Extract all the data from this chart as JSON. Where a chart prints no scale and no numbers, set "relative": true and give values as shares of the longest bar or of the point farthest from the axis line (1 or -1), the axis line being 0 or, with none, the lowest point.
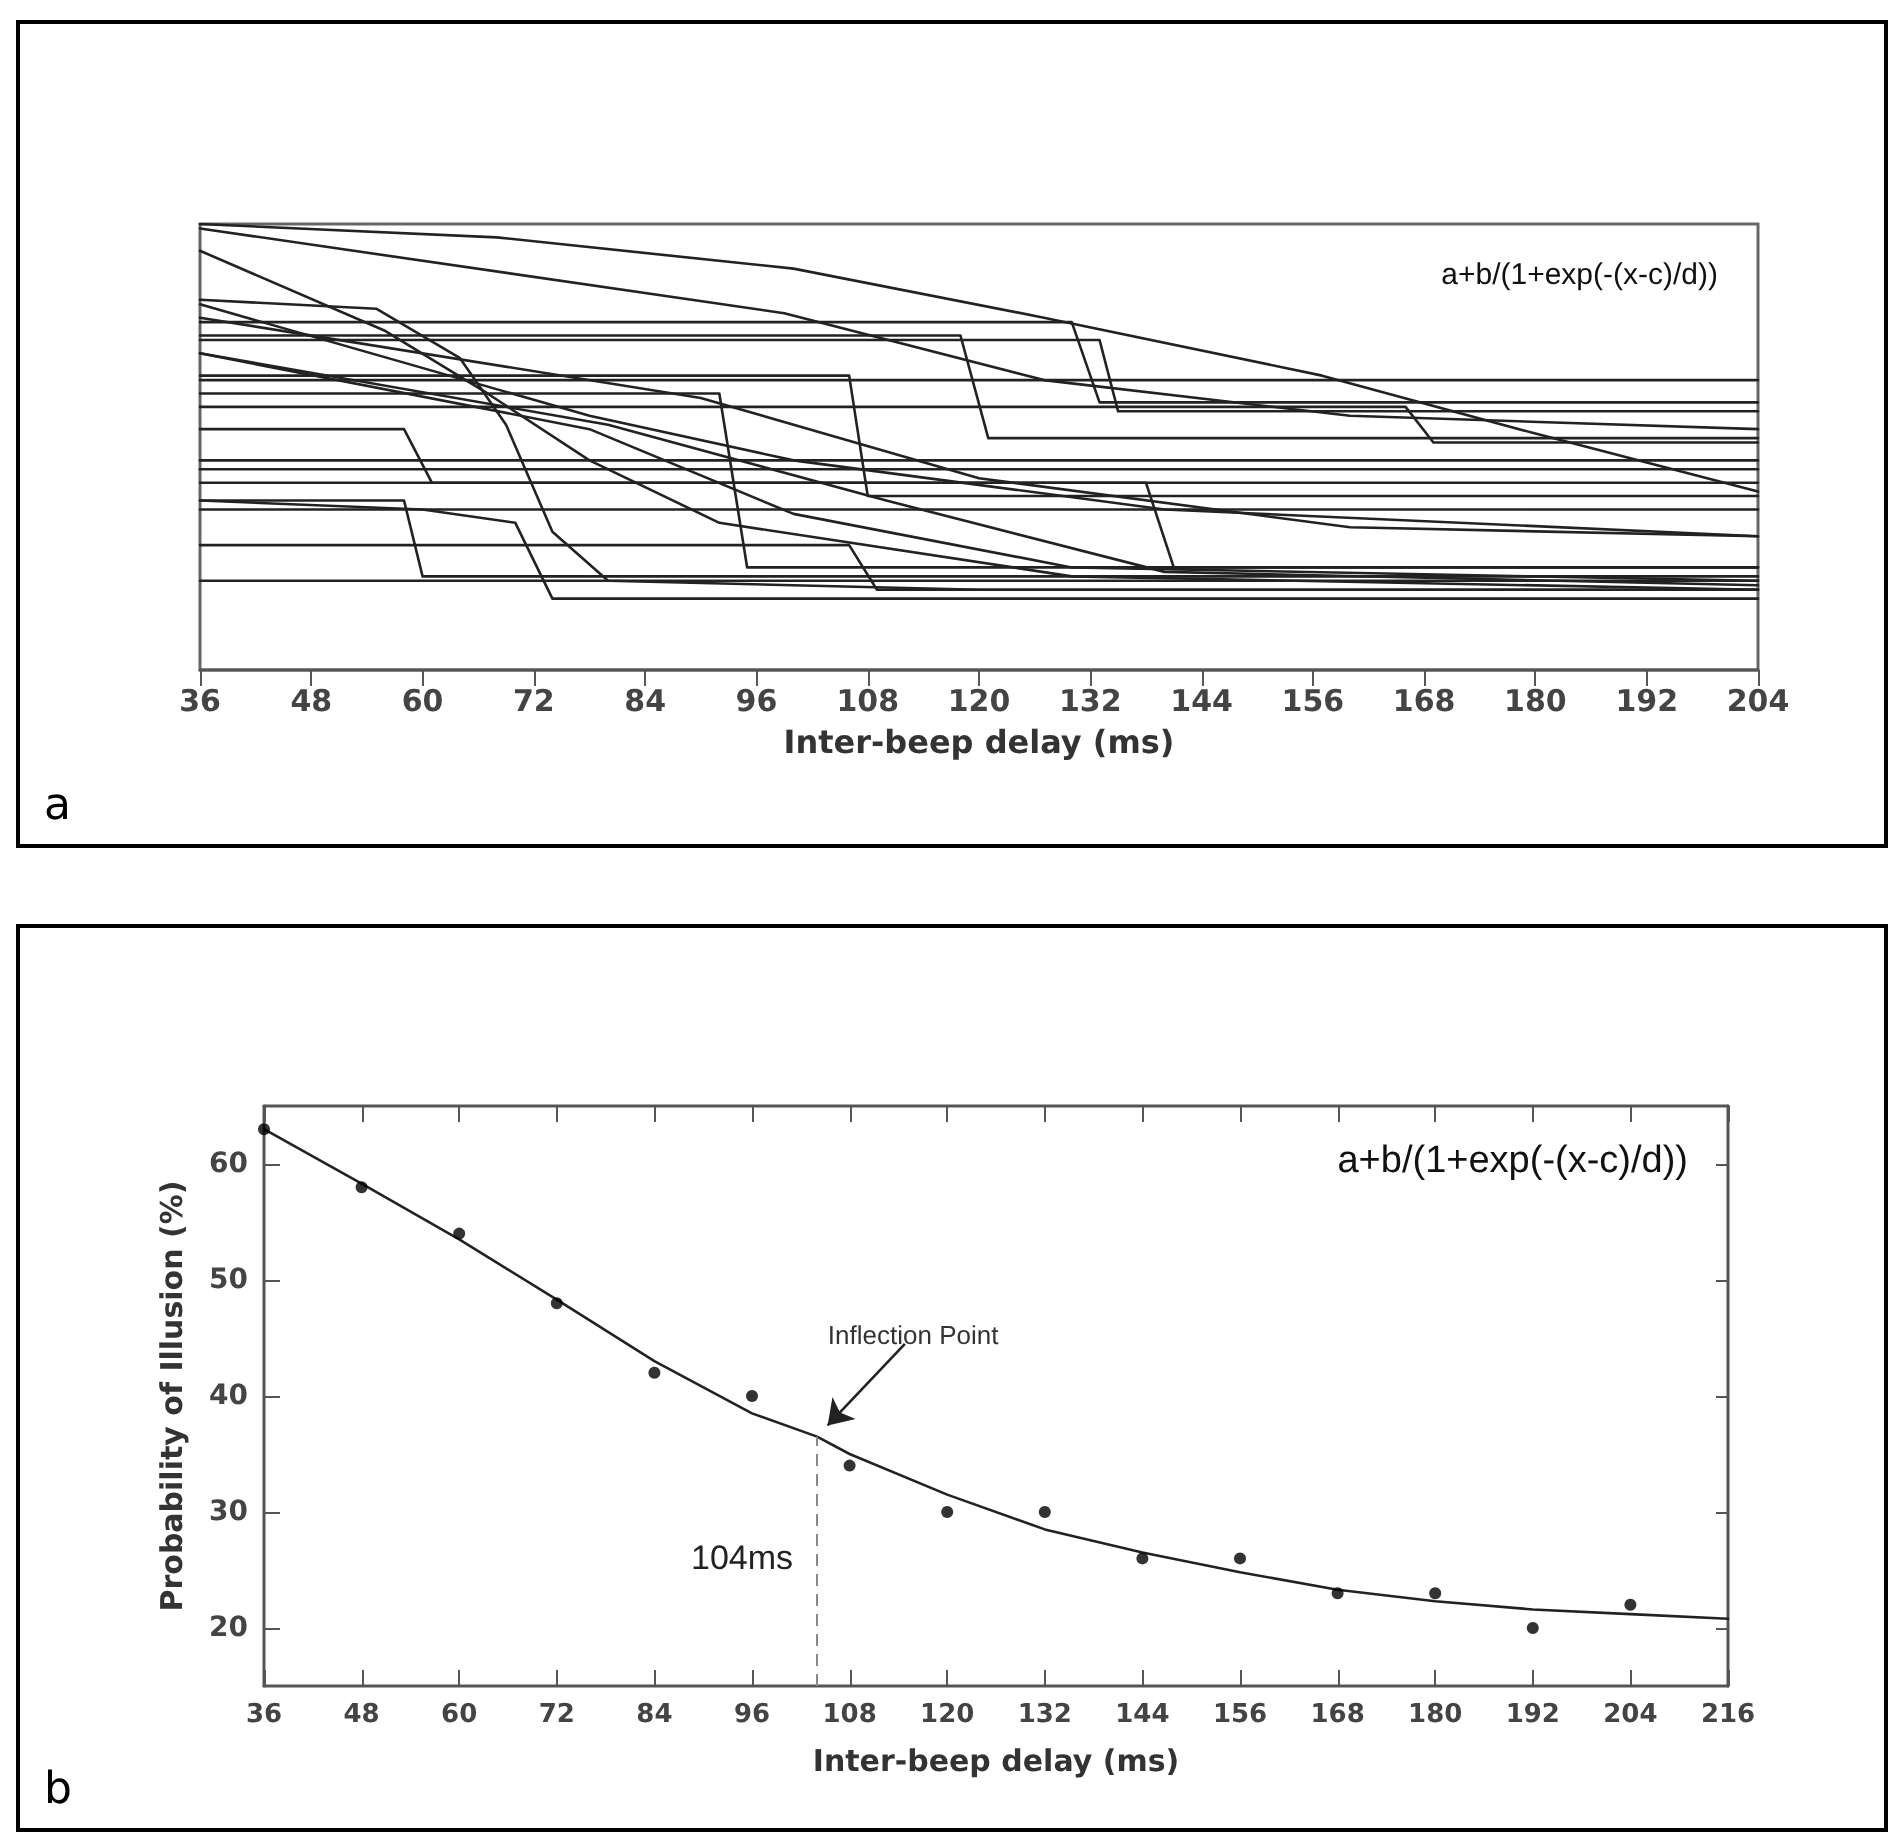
{
  "chart_data": [
    {
      "type": "line",
      "relative": true,
      "xlabel": "Inter-beep delay (ms)",
      "xlim": [
        36,
        204
      ],
      "xticks": [
        36,
        48,
        60,
        72,
        84,
        96,
        108,
        120,
        132,
        144,
        156,
        168,
        180,
        192,
        204
      ],
      "grid": false,
      "marker": "none",
      "line_style": "solid",
      "annotations": [
        "a+b/(1+exp(-(x-c)/d))",
        "a"
      ],
      "series": [
        {
          "color": "#222222",
          "x": [
            36,
            68,
            100,
            127,
            157,
            180,
            204
          ],
          "values": [
            1,
            0.97,
            0.9,
            0.79,
            0.66,
            0.53,
            0.4
          ]
        },
        {
          "color": "#222222",
          "x": [
            36,
            130,
            133,
            204
          ],
          "values": [
            0.78,
            0.78,
            0.6,
            0.6
          ]
        },
        {
          "color": "#222222",
          "x": [
            36,
            133,
            135,
            204
          ],
          "values": [
            0.74,
            0.74,
            0.58,
            0.58
          ]
        },
        {
          "color": "#222222",
          "x": [
            36,
            118,
            121,
            204
          ],
          "values": [
            0.75,
            0.75,
            0.52,
            0.52
          ]
        },
        {
          "color": "#222222",
          "x": [
            36,
            166,
            169,
            204
          ],
          "values": [
            0.59,
            0.59,
            0.51,
            0.51
          ]
        },
        {
          "color": "#222222",
          "x": [
            36,
            92,
            95,
            204
          ],
          "values": [
            0.62,
            0.62,
            0.23,
            0.23
          ]
        },
        {
          "color": "#222222",
          "x": [
            36,
            58,
            61,
            204
          ],
          "values": [
            0.54,
            0.54,
            0.42,
            0.42
          ]
        },
        {
          "color": "#222222",
          "x": [
            36,
            58,
            60,
            204
          ],
          "values": [
            0.38,
            0.38,
            0.21,
            0.21
          ]
        },
        {
          "color": "#222222",
          "x": [
            36,
            60,
            70,
            74,
            204
          ],
          "values": [
            0.38,
            0.36,
            0.33,
            0.16,
            0.16
          ]
        },
        {
          "color": "#222222",
          "x": [
            36,
            106,
            108,
            204
          ],
          "values": [
            0.66,
            0.66,
            0.39,
            0.39
          ]
        },
        {
          "color": "#222222",
          "x": [
            36,
            138,
            141,
            204
          ],
          "values": [
            0.42,
            0.42,
            0.23,
            0.23
          ]
        },
        {
          "color": "#222222",
          "x": [
            36,
            106,
            109,
            204
          ],
          "values": [
            0.28,
            0.28,
            0.18,
            0.18
          ]
        },
        {
          "color": "#222222",
          "x": [
            36,
            204
          ],
          "values": [
            0.65,
            0.65
          ]
        },
        {
          "color": "#222222",
          "x": [
            36,
            204
          ],
          "values": [
            0.47,
            0.47
          ]
        },
        {
          "color": "#222222",
          "x": [
            36,
            204
          ],
          "values": [
            0.45,
            0.45
          ]
        },
        {
          "color": "#222222",
          "x": [
            36,
            204
          ],
          "values": [
            0.2,
            0.2
          ]
        },
        {
          "color": "#222222",
          "x": [
            36,
            204
          ],
          "values": [
            0.36,
            0.36
          ]
        },
        {
          "color": "#222222",
          "x": [
            36,
            99,
            127,
            160,
            204
          ],
          "values": [
            0.99,
            0.8,
            0.65,
            0.57,
            0.54
          ]
        },
        {
          "color": "#222222",
          "x": [
            36,
            56,
            67,
            78,
            92,
            130,
            204
          ],
          "values": [
            0.94,
            0.76,
            0.62,
            0.47,
            0.33,
            0.21,
            0.18
          ]
        },
        {
          "color": "#222222",
          "x": [
            36,
            55,
            64,
            69,
            74,
            80,
            120,
            204
          ],
          "values": [
            0.83,
            0.81,
            0.7,
            0.55,
            0.31,
            0.2,
            0.18,
            0.18
          ]
        },
        {
          "color": "#222222",
          "x": [
            36,
            78,
            100,
            140,
            204
          ],
          "values": [
            0.82,
            0.57,
            0.47,
            0.36,
            0.3
          ]
        },
        {
          "color": "#222222",
          "x": [
            36,
            90,
            120,
            160,
            204
          ],
          "values": [
            0.79,
            0.61,
            0.43,
            0.32,
            0.3
          ]
        },
        {
          "color": "#222222",
          "x": [
            36,
            78,
            100,
            130,
            204
          ],
          "values": [
            0.71,
            0.54,
            0.35,
            0.23,
            0.2
          ]
        },
        {
          "color": "#222222",
          "x": [
            36,
            80,
            110,
            140,
            204
          ],
          "values": [
            0.71,
            0.55,
            0.38,
            0.22,
            0.19
          ]
        }
      ]
    },
    {
      "type": "scatter",
      "xlabel": "Inter-beep delay (ms)",
      "ylabel": "Probability of Illusion (%)",
      "xlim": [
        36,
        216
      ],
      "xticks": [
        36,
        48,
        60,
        72,
        84,
        96,
        108,
        120,
        132,
        144,
        156,
        168,
        180,
        192,
        204,
        216
      ],
      "ylim": [
        15,
        65
      ],
      "yticks": [
        20,
        30,
        40,
        50,
        60
      ],
      "grid": false,
      "marker": "circle",
      "annotations": [
        "a+b/(1+exp(-(x-c)/d))",
        {
          "text": "Inflection Point",
          "x": 104,
          "y": 36.5
        },
        "b"
      ],
      "ref_lines": [
        {
          "axis": "x",
          "value": 104,
          "label": "104ms",
          "color": "#888888",
          "line_style": "dashed"
        }
      ],
      "series": [
        {
          "color": "#000000",
          "x": [
            36,
            48,
            60,
            72,
            84,
            96,
            108,
            120,
            132,
            144,
            156,
            168,
            180,
            192,
            204
          ],
          "values": [
            63,
            58,
            54,
            48,
            42,
            40,
            34,
            30,
            30,
            26,
            26,
            23,
            23,
            20,
            22
          ]
        },
        {
          "type": "line",
          "color": "#222222",
          "marker": "none",
          "line_style": "solid",
          "x": [
            36,
            48,
            60,
            72,
            84,
            96,
            104,
            108,
            120,
            132,
            144,
            156,
            168,
            180,
            192,
            204,
            216
          ],
          "values": [
            63,
            58.3,
            53.5,
            48.3,
            43,
            38.5,
            36.5,
            35,
            31.5,
            28.5,
            26.5,
            24.8,
            23.3,
            22.3,
            21.6,
            21.2,
            20.8
          ]
        }
      ]
    }
  ]
}
